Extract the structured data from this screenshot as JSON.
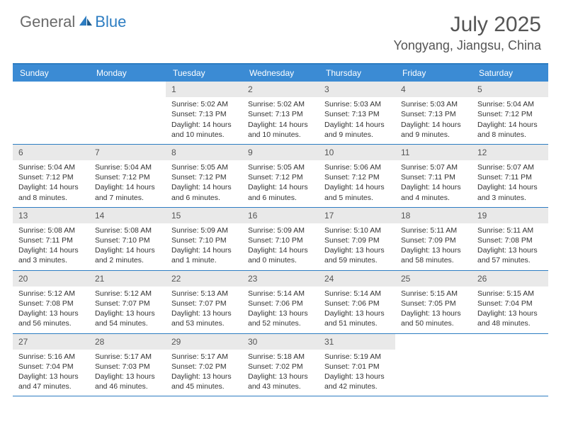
{
  "brand": {
    "part1": "General",
    "part2": "Blue"
  },
  "title": "July 2025",
  "location": "Yongyang, Jiangsu, China",
  "colors": {
    "accent": "#3b8bd4",
    "border": "#2d7dc2",
    "daynum_bg": "#e9e9e9",
    "text": "#333333",
    "muted": "#555555",
    "white": "#ffffff"
  },
  "day_headers": [
    "Sunday",
    "Monday",
    "Tuesday",
    "Wednesday",
    "Thursday",
    "Friday",
    "Saturday"
  ],
  "weeks": [
    [
      {
        "n": "",
        "sr": "",
        "ss": "",
        "dl": ""
      },
      {
        "n": "",
        "sr": "",
        "ss": "",
        "dl": ""
      },
      {
        "n": "1",
        "sr": "Sunrise: 5:02 AM",
        "ss": "Sunset: 7:13 PM",
        "dl": "Daylight: 14 hours and 10 minutes."
      },
      {
        "n": "2",
        "sr": "Sunrise: 5:02 AM",
        "ss": "Sunset: 7:13 PM",
        "dl": "Daylight: 14 hours and 10 minutes."
      },
      {
        "n": "3",
        "sr": "Sunrise: 5:03 AM",
        "ss": "Sunset: 7:13 PM",
        "dl": "Daylight: 14 hours and 9 minutes."
      },
      {
        "n": "4",
        "sr": "Sunrise: 5:03 AM",
        "ss": "Sunset: 7:13 PM",
        "dl": "Daylight: 14 hours and 9 minutes."
      },
      {
        "n": "5",
        "sr": "Sunrise: 5:04 AM",
        "ss": "Sunset: 7:12 PM",
        "dl": "Daylight: 14 hours and 8 minutes."
      }
    ],
    [
      {
        "n": "6",
        "sr": "Sunrise: 5:04 AM",
        "ss": "Sunset: 7:12 PM",
        "dl": "Daylight: 14 hours and 8 minutes."
      },
      {
        "n": "7",
        "sr": "Sunrise: 5:04 AM",
        "ss": "Sunset: 7:12 PM",
        "dl": "Daylight: 14 hours and 7 minutes."
      },
      {
        "n": "8",
        "sr": "Sunrise: 5:05 AM",
        "ss": "Sunset: 7:12 PM",
        "dl": "Daylight: 14 hours and 6 minutes."
      },
      {
        "n": "9",
        "sr": "Sunrise: 5:05 AM",
        "ss": "Sunset: 7:12 PM",
        "dl": "Daylight: 14 hours and 6 minutes."
      },
      {
        "n": "10",
        "sr": "Sunrise: 5:06 AM",
        "ss": "Sunset: 7:12 PM",
        "dl": "Daylight: 14 hours and 5 minutes."
      },
      {
        "n": "11",
        "sr": "Sunrise: 5:07 AM",
        "ss": "Sunset: 7:11 PM",
        "dl": "Daylight: 14 hours and 4 minutes."
      },
      {
        "n": "12",
        "sr": "Sunrise: 5:07 AM",
        "ss": "Sunset: 7:11 PM",
        "dl": "Daylight: 14 hours and 3 minutes."
      }
    ],
    [
      {
        "n": "13",
        "sr": "Sunrise: 5:08 AM",
        "ss": "Sunset: 7:11 PM",
        "dl": "Daylight: 14 hours and 3 minutes."
      },
      {
        "n": "14",
        "sr": "Sunrise: 5:08 AM",
        "ss": "Sunset: 7:10 PM",
        "dl": "Daylight: 14 hours and 2 minutes."
      },
      {
        "n": "15",
        "sr": "Sunrise: 5:09 AM",
        "ss": "Sunset: 7:10 PM",
        "dl": "Daylight: 14 hours and 1 minute."
      },
      {
        "n": "16",
        "sr": "Sunrise: 5:09 AM",
        "ss": "Sunset: 7:10 PM",
        "dl": "Daylight: 14 hours and 0 minutes."
      },
      {
        "n": "17",
        "sr": "Sunrise: 5:10 AM",
        "ss": "Sunset: 7:09 PM",
        "dl": "Daylight: 13 hours and 59 minutes."
      },
      {
        "n": "18",
        "sr": "Sunrise: 5:11 AM",
        "ss": "Sunset: 7:09 PM",
        "dl": "Daylight: 13 hours and 58 minutes."
      },
      {
        "n": "19",
        "sr": "Sunrise: 5:11 AM",
        "ss": "Sunset: 7:08 PM",
        "dl": "Daylight: 13 hours and 57 minutes."
      }
    ],
    [
      {
        "n": "20",
        "sr": "Sunrise: 5:12 AM",
        "ss": "Sunset: 7:08 PM",
        "dl": "Daylight: 13 hours and 56 minutes."
      },
      {
        "n": "21",
        "sr": "Sunrise: 5:12 AM",
        "ss": "Sunset: 7:07 PM",
        "dl": "Daylight: 13 hours and 54 minutes."
      },
      {
        "n": "22",
        "sr": "Sunrise: 5:13 AM",
        "ss": "Sunset: 7:07 PM",
        "dl": "Daylight: 13 hours and 53 minutes."
      },
      {
        "n": "23",
        "sr": "Sunrise: 5:14 AM",
        "ss": "Sunset: 7:06 PM",
        "dl": "Daylight: 13 hours and 52 minutes."
      },
      {
        "n": "24",
        "sr": "Sunrise: 5:14 AM",
        "ss": "Sunset: 7:06 PM",
        "dl": "Daylight: 13 hours and 51 minutes."
      },
      {
        "n": "25",
        "sr": "Sunrise: 5:15 AM",
        "ss": "Sunset: 7:05 PM",
        "dl": "Daylight: 13 hours and 50 minutes."
      },
      {
        "n": "26",
        "sr": "Sunrise: 5:15 AM",
        "ss": "Sunset: 7:04 PM",
        "dl": "Daylight: 13 hours and 48 minutes."
      }
    ],
    [
      {
        "n": "27",
        "sr": "Sunrise: 5:16 AM",
        "ss": "Sunset: 7:04 PM",
        "dl": "Daylight: 13 hours and 47 minutes."
      },
      {
        "n": "28",
        "sr": "Sunrise: 5:17 AM",
        "ss": "Sunset: 7:03 PM",
        "dl": "Daylight: 13 hours and 46 minutes."
      },
      {
        "n": "29",
        "sr": "Sunrise: 5:17 AM",
        "ss": "Sunset: 7:02 PM",
        "dl": "Daylight: 13 hours and 45 minutes."
      },
      {
        "n": "30",
        "sr": "Sunrise: 5:18 AM",
        "ss": "Sunset: 7:02 PM",
        "dl": "Daylight: 13 hours and 43 minutes."
      },
      {
        "n": "31",
        "sr": "Sunrise: 5:19 AM",
        "ss": "Sunset: 7:01 PM",
        "dl": "Daylight: 13 hours and 42 minutes."
      },
      {
        "n": "",
        "sr": "",
        "ss": "",
        "dl": ""
      },
      {
        "n": "",
        "sr": "",
        "ss": "",
        "dl": ""
      }
    ]
  ]
}
